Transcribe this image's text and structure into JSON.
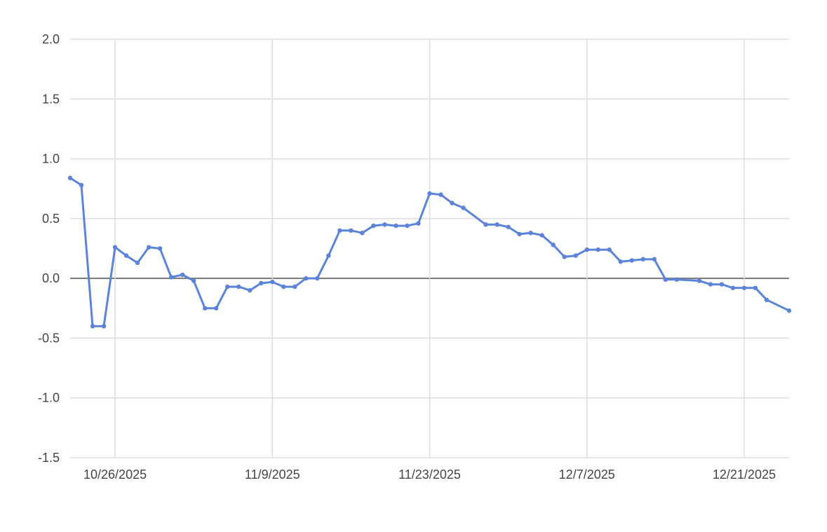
{
  "chart_data": {
    "type": "line",
    "title": "",
    "xlabel": "",
    "ylabel": "",
    "ylim": [
      -1.5,
      2.0
    ],
    "yticks": [
      "2.0",
      "1.5",
      "1.0",
      "0.5",
      "0.0",
      "-0.5",
      "-1.0",
      "-1.5"
    ],
    "xlim": [
      "2025-10-22",
      "2025-12-25"
    ],
    "xticks": [
      {
        "date": "2025-10-26",
        "label": "10/26/2025"
      },
      {
        "date": "2025-11-09",
        "label": "11/9/2025"
      },
      {
        "date": "2025-11-23",
        "label": "11/23/2025"
      },
      {
        "date": "2025-12-07",
        "label": "12/7/2025"
      },
      {
        "date": "2025-12-21",
        "label": "12/21/2025"
      }
    ],
    "grid": true,
    "line_color": "#5b84d9",
    "zero_line_color": "#777777",
    "grid_color": "#dddddd",
    "series": [
      {
        "points": [
          [
            "2025-10-22",
            0.84
          ],
          [
            "2025-10-23",
            0.78
          ],
          [
            "2025-10-24",
            -0.4
          ],
          [
            "2025-10-25",
            -0.4
          ],
          [
            "2025-10-26",
            0.26
          ],
          [
            "2025-10-27",
            0.19
          ],
          [
            "2025-10-28",
            0.13
          ],
          [
            "2025-10-29",
            0.26
          ],
          [
            "2025-10-30",
            0.25
          ],
          [
            "2025-10-31",
            0.01
          ],
          [
            "2025-11-01",
            0.03
          ],
          [
            "2025-11-02",
            -0.02
          ],
          [
            "2025-11-03",
            -0.25
          ],
          [
            "2025-11-04",
            -0.25
          ],
          [
            "2025-11-05",
            -0.07
          ],
          [
            "2025-11-06",
            -0.07
          ],
          [
            "2025-11-07",
            -0.1
          ],
          [
            "2025-11-08",
            -0.04
          ],
          [
            "2025-11-09",
            -0.03
          ],
          [
            "2025-11-10",
            -0.07
          ],
          [
            "2025-11-11",
            -0.07
          ],
          [
            "2025-11-12",
            0.0
          ],
          [
            "2025-11-13",
            0.0
          ],
          [
            "2025-11-14",
            0.19
          ],
          [
            "2025-11-15",
            0.4
          ],
          [
            "2025-11-16",
            0.4
          ],
          [
            "2025-11-17",
            0.38
          ],
          [
            "2025-11-18",
            0.44
          ],
          [
            "2025-11-19",
            0.45
          ],
          [
            "2025-11-20",
            0.44
          ],
          [
            "2025-11-21",
            0.44
          ],
          [
            "2025-11-22",
            0.46
          ],
          [
            "2025-11-23",
            0.71
          ],
          [
            "2025-11-24",
            0.7
          ],
          [
            "2025-11-25",
            0.63
          ],
          [
            "2025-11-26",
            0.59
          ],
          [
            "2025-11-28",
            0.45
          ],
          [
            "2025-11-29",
            0.45
          ],
          [
            "2025-11-30",
            0.43
          ],
          [
            "2025-12-01",
            0.37
          ],
          [
            "2025-12-02",
            0.38
          ],
          [
            "2025-12-03",
            0.36
          ],
          [
            "2025-12-04",
            0.28
          ],
          [
            "2025-12-05",
            0.18
          ],
          [
            "2025-12-06",
            0.19
          ],
          [
            "2025-12-07",
            0.24
          ],
          [
            "2025-12-08",
            0.24
          ],
          [
            "2025-12-09",
            0.24
          ],
          [
            "2025-12-10",
            0.14
          ],
          [
            "2025-12-11",
            0.15
          ],
          [
            "2025-12-12",
            0.16
          ],
          [
            "2025-12-13",
            0.16
          ],
          [
            "2025-12-14",
            -0.01
          ],
          [
            "2025-12-15",
            -0.01
          ],
          [
            "2025-12-17",
            -0.02
          ],
          [
            "2025-12-18",
            -0.05
          ],
          [
            "2025-12-19",
            -0.05
          ],
          [
            "2025-12-20",
            -0.08
          ],
          [
            "2025-12-21",
            -0.08
          ],
          [
            "2025-12-22",
            -0.08
          ],
          [
            "2025-12-23",
            -0.18
          ],
          [
            "2025-12-25",
            -0.27
          ]
        ]
      }
    ]
  }
}
